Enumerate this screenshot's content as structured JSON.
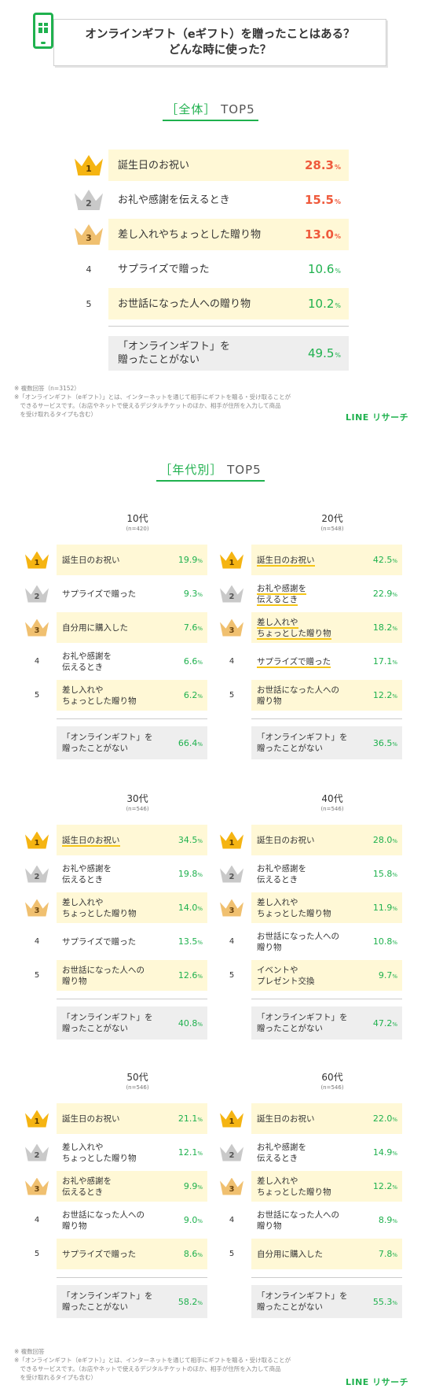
{
  "header": {
    "title_line1": "オンラインギフト（eギフト）を贈ったことはある？",
    "title_line2": "どんな時に使った？"
  },
  "overall": {
    "section": {
      "bracket_open": "［",
      "label": "全体",
      "bracket_close": "］",
      "rest": "TOP5"
    },
    "rows": [
      {
        "rank": "1",
        "label": "誕生日のお祝い",
        "value": "28.3",
        "pct": "%"
      },
      {
        "rank": "2",
        "label": "お礼や感謝を伝えるとき",
        "value": "15.5",
        "pct": "%"
      },
      {
        "rank": "3",
        "label": "差し入れやちょっとした贈り物",
        "value": "13.0",
        "pct": "%"
      },
      {
        "rank": "4",
        "label": "サプライズで贈った",
        "value": "10.6",
        "pct": "%"
      },
      {
        "rank": "5",
        "label": "お世話になった人への贈り物",
        "value": "10.2",
        "pct": "%"
      }
    ],
    "none": {
      "label_line1": "「オンラインギフト」を",
      "label_line2": "贈ったことがない",
      "value": "49.5",
      "pct": "%"
    }
  },
  "notes_top": [
    "※ 複数回答（n=3152）",
    "※「オンラインギフト（eギフト）」とは、インターネットを通じて相手にギフトを贈る・受け取ることが",
    "　できるサービスです。（お店やネットで使えるデジタルチケットのほか、相手が住所を入力して商品",
    "　を受け取れるタイプも含む）"
  ],
  "notes_bottom": [
    "※ 複数回答",
    "※「オンラインギフト（eギフト）」とは、インターネットを通じて相手にギフトを贈る・受け取ることが",
    "　できるサービスです。（お店やネットで使えるデジタルチケットのほか、相手が住所を入力して商品",
    "　を受け取れるタイプも含む）"
  ],
  "brand": "LINE リサーチ",
  "age_section": {
    "bracket_open": "［",
    "label": "年代別",
    "bracket_close": "］",
    "rest": "TOP5"
  },
  "panels": [
    {
      "title": "10代",
      "n": "(n=420)",
      "rows": [
        {
          "rank": "1",
          "l1": "誕生日のお祝い",
          "l2": "",
          "value": "19.9",
          "pct": "%"
        },
        {
          "rank": "2",
          "l1": "サプライズで贈った",
          "l2": "",
          "value": "9.3",
          "pct": "%"
        },
        {
          "rank": "3",
          "l1": "自分用に購入した",
          "l2": "",
          "value": "7.6",
          "pct": "%"
        },
        {
          "rank": "4",
          "l1": "お礼や感謝を",
          "l2": "伝えるとき",
          "value": "6.6",
          "pct": "%"
        },
        {
          "rank": "5",
          "l1": "差し入れや",
          "l2": "ちょっとした贈り物",
          "value": "6.2",
          "pct": "%"
        }
      ],
      "none": {
        "l1": "「オンラインギフト」を",
        "l2": "贈ったことがない",
        "value": "66.4",
        "pct": "%"
      }
    },
    {
      "title": "20代",
      "n": "(n=548)",
      "rows": [
        {
          "rank": "1",
          "l1": "誕生日のお祝い",
          "l2": "",
          "value": "42.5",
          "pct": "%"
        },
        {
          "rank": "2",
          "l1": "お礼や感謝を",
          "l2": "伝えるとき",
          "value": "22.9",
          "pct": "%"
        },
        {
          "rank": "3",
          "l1": "差し入れや",
          "l2": "ちょっとした贈り物",
          "value": "18.2",
          "pct": "%"
        },
        {
          "rank": "4",
          "l1": "サプライズで贈った",
          "l2": "",
          "value": "17.1",
          "pct": "%"
        },
        {
          "rank": "5",
          "l1": "お世話になった人への",
          "l2": "贈り物",
          "value": "12.2",
          "pct": "%"
        }
      ],
      "none": {
        "l1": "「オンラインギフト」を",
        "l2": "贈ったことがない",
        "value": "36.5",
        "pct": "%"
      }
    },
    {
      "title": "30代",
      "n": "(n=546)",
      "rows": [
        {
          "rank": "1",
          "l1": "誕生日のお祝い",
          "l2": "",
          "value": "34.5",
          "pct": "%"
        },
        {
          "rank": "2",
          "l1": "お礼や感謝を",
          "l2": "伝えるとき",
          "value": "19.8",
          "pct": "%"
        },
        {
          "rank": "3",
          "l1": "差し入れや",
          "l2": "ちょっとした贈り物",
          "value": "14.0",
          "pct": "%"
        },
        {
          "rank": "4",
          "l1": "サプライズで贈った",
          "l2": "",
          "value": "13.5",
          "pct": "%"
        },
        {
          "rank": "5",
          "l1": "お世話になった人への",
          "l2": "贈り物",
          "value": "12.6",
          "pct": "%"
        }
      ],
      "none": {
        "l1": "「オンラインギフト」を",
        "l2": "贈ったことがない",
        "value": "40.8",
        "pct": "%"
      }
    },
    {
      "title": "40代",
      "n": "(n=546)",
      "rows": [
        {
          "rank": "1",
          "l1": "誕生日のお祝い",
          "l2": "",
          "value": "28.0",
          "pct": "%"
        },
        {
          "rank": "2",
          "l1": "お礼や感謝を",
          "l2": "伝えるとき",
          "value": "15.8",
          "pct": "%"
        },
        {
          "rank": "3",
          "l1": "差し入れや",
          "l2": "ちょっとした贈り物",
          "value": "11.9",
          "pct": "%"
        },
        {
          "rank": "4",
          "l1": "お世話になった人への",
          "l2": "贈り物",
          "value": "10.8",
          "pct": "%"
        },
        {
          "rank": "5",
          "l1": "イベントや",
          "l2": "プレゼント交換",
          "value": "9.7",
          "pct": "%"
        }
      ],
      "none": {
        "l1": "「オンラインギフト」を",
        "l2": "贈ったことがない",
        "value": "47.2",
        "pct": "%"
      }
    },
    {
      "title": "50代",
      "n": "(n=546)",
      "rows": [
        {
          "rank": "1",
          "l1": "誕生日のお祝い",
          "l2": "",
          "value": "21.1",
          "pct": "%"
        },
        {
          "rank": "2",
          "l1": "差し入れや",
          "l2": "ちょっとした贈り物",
          "value": "12.1",
          "pct": "%"
        },
        {
          "rank": "3",
          "l1": "お礼や感謝を",
          "l2": "伝えるとき",
          "value": "9.9",
          "pct": "%"
        },
        {
          "rank": "4",
          "l1": "お世話になった人への",
          "l2": "贈り物",
          "value": "9.0",
          "pct": "%"
        },
        {
          "rank": "5",
          "l1": "サプライズで贈った",
          "l2": "",
          "value": "8.6",
          "pct": "%"
        }
      ],
      "none": {
        "l1": "「オンラインギフト」を",
        "l2": "贈ったことがない",
        "value": "58.2",
        "pct": "%"
      }
    },
    {
      "title": "60代",
      "n": "(n=546)",
      "rows": [
        {
          "rank": "1",
          "l1": "誕生日のお祝い",
          "l2": "",
          "value": "22.0",
          "pct": "%"
        },
        {
          "rank": "2",
          "l1": "お礼や感謝を",
          "l2": "伝えるとき",
          "value": "14.9",
          "pct": "%"
        },
        {
          "rank": "3",
          "l1": "差し入れや",
          "l2": "ちょっとした贈り物",
          "value": "12.2",
          "pct": "%"
        },
        {
          "rank": "4",
          "l1": "お世話になった人への",
          "l2": "贈り物",
          "value": "8.9",
          "pct": "%"
        },
        {
          "rank": "5",
          "l1": "自分用に購入した",
          "l2": "",
          "value": "7.8",
          "pct": "%"
        }
      ],
      "none": {
        "l1": "「オンラインギフト」を",
        "l2": "贈ったことがない",
        "value": "55.3",
        "pct": "%"
      }
    }
  ]
}
